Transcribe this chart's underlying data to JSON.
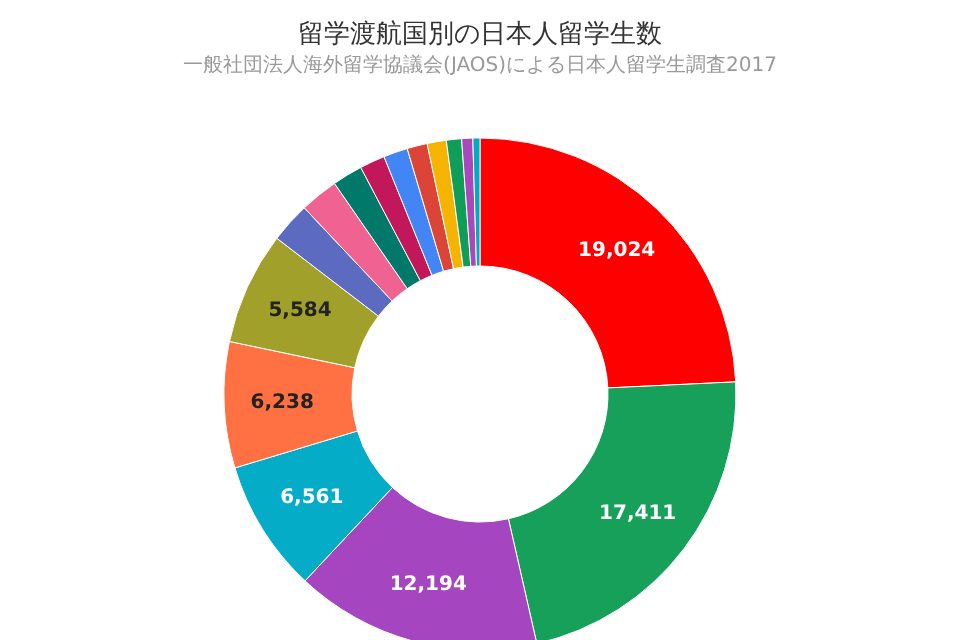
{
  "chart_data": {
    "type": "donut",
    "title": "留学渡航国別の日本人留学生数",
    "subtitle": "一般社団法人海外留学協議会(JAOS)による日本人留学生調査2017",
    "categories": [
      null,
      null,
      null,
      null,
      null,
      null,
      null,
      null,
      null,
      null,
      null,
      null,
      null,
      null,
      null,
      null
    ],
    "values": [
      19024,
      17411,
      12194,
      6561,
      6238,
      5584,
      2000,
      1900,
      1500,
      1250,
      1200,
      1000,
      950,
      750,
      550,
      350
    ],
    "value_labels": [
      "19,024",
      "17,411",
      "12,194",
      "6,561",
      "6,238",
      "5,584",
      null,
      null,
      null,
      null,
      null,
      null,
      null,
      null,
      null,
      null
    ],
    "colors": [
      "#ff0000",
      "#16a05a",
      "#a545c0",
      "#05acc8",
      "#ff7043",
      "#a0a02a",
      "#5c6bc0",
      "#f06292",
      "#00796b",
      "#c2185b",
      "#4285f4",
      "#db4437",
      "#f4b400",
      "#0f9d58",
      "#ab47bc",
      "#00acc1"
    ],
    "legend": false
  }
}
